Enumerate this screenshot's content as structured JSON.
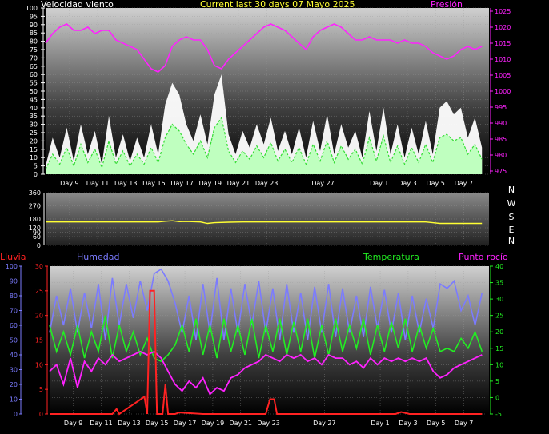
{
  "header": {
    "title": "Current last 30 days 07 Mayo 2025",
    "wind_label": "Velocidad viento",
    "pressure_label": "Presión",
    "rain_label": "Lluvia",
    "humidity_label": "Humedad",
    "temperature_label": "Temperatura",
    "dewpoint_label": "Punto rocío"
  },
  "colors": {
    "wind": "#ffffff",
    "wind_gust_fill": "#ffffff",
    "wind_avg": "#33dd33",
    "wind_fill": "#bfffbf",
    "pressure": "#ff22ff",
    "direction": "#ffff33",
    "rain": "#ff2222",
    "humidity": "#7b7bff",
    "temperature": "#22ee22",
    "dewpoint": "#ff22ff"
  },
  "chart_data": [
    {
      "type": "area",
      "title": "Current last 30 days 07 Mayo 2025",
      "x_ticks": [
        "Day 9",
        "Day 11",
        "Day 13",
        "Day 15",
        "Day 17",
        "Day 19",
        "Day 21",
        "Day 23",
        "Day 27",
        "Day 1",
        "Day 3",
        "Day 5",
        "Day 7"
      ],
      "x_tick_days": [
        1.7,
        3.7,
        5.7,
        7.7,
        9.7,
        11.7,
        13.7,
        15.7,
        19.7,
        23.7,
        25.7,
        27.7,
        29.7
      ],
      "x_range_days": [
        0,
        31.5
      ],
      "y_left_label": "Velocidad viento",
      "y_left_ticks": [
        0,
        5,
        10,
        15,
        20,
        25,
        30,
        35,
        40,
        45,
        50,
        55,
        60,
        65,
        70,
        75,
        80,
        85,
        90,
        95,
        100
      ],
      "y_left_range": [
        0,
        100
      ],
      "y_right_label": "Presión",
      "y_right_ticks": [
        975,
        980,
        985,
        990,
        995,
        1000,
        1005,
        1010,
        1015,
        1020,
        1025
      ],
      "y_right_range": [
        974,
        1026
      ],
      "series": [
        {
          "name": "Presión",
          "axis": "right",
          "x": [
            0,
            0.5,
            1,
            1.5,
            2,
            2.5,
            3,
            3.5,
            4,
            4.5,
            5,
            5.5,
            6,
            6.5,
            7,
            7.5,
            8,
            8.5,
            9,
            9.5,
            10,
            10.5,
            11,
            11.5,
            12,
            12.5,
            13,
            13.5,
            14,
            14.5,
            15,
            15.5,
            16,
            16.5,
            17,
            17.5,
            18,
            18.5,
            19,
            19.5,
            20,
            20.5,
            21,
            21.5,
            22,
            22.5,
            23,
            23.5,
            24,
            24.5,
            25,
            25.5,
            26,
            26.5,
            27,
            27.5,
            28,
            28.5,
            29,
            29.5,
            30,
            30.5,
            31
          ],
          "values": [
            1015,
            1018,
            1020,
            1021,
            1019,
            1019,
            1020,
            1018,
            1019,
            1019,
            1016,
            1015,
            1014,
            1013,
            1010,
            1007,
            1006,
            1008,
            1014,
            1016,
            1017,
            1016,
            1016,
            1013,
            1008,
            1007,
            1010,
            1012,
            1014,
            1016,
            1018,
            1020,
            1021,
            1020,
            1019,
            1017,
            1015,
            1013,
            1017,
            1019,
            1020,
            1021,
            1020,
            1018,
            1016,
            1016,
            1017,
            1016,
            1016,
            1016,
            1015,
            1016,
            1015,
            1015,
            1014,
            1012,
            1011,
            1010,
            1011,
            1013,
            1014,
            1013,
            1014
          ]
        },
        {
          "name": "Velocidad viento (ráfaga)",
          "axis": "left",
          "x": [
            0,
            0.5,
            1,
            1.5,
            2,
            2.5,
            3,
            3.5,
            4,
            4.5,
            5,
            5.5,
            6,
            6.5,
            7,
            7.5,
            8,
            8.5,
            9,
            9.5,
            10,
            10.5,
            11,
            11.5,
            12,
            12.5,
            13,
            13.5,
            14,
            14.5,
            15,
            15.5,
            16,
            16.5,
            17,
            17.5,
            18,
            18.5,
            19,
            19.5,
            20,
            20.5,
            21,
            21.5,
            22,
            22.5,
            23,
            23.5,
            24,
            24.5,
            25,
            25.5,
            26,
            26.5,
            27,
            27.5,
            28,
            28.5,
            29,
            29.5,
            30,
            30.5,
            31
          ],
          "values": [
            5,
            22,
            10,
            28,
            8,
            30,
            12,
            26,
            6,
            35,
            10,
            24,
            8,
            22,
            10,
            30,
            12,
            42,
            55,
            48,
            30,
            20,
            36,
            18,
            48,
            60,
            24,
            12,
            26,
            16,
            30,
            18,
            34,
            14,
            26,
            12,
            28,
            10,
            32,
            14,
            36,
            12,
            30,
            16,
            26,
            10,
            38,
            14,
            40,
            12,
            30,
            10,
            28,
            12,
            32,
            12,
            40,
            44,
            36,
            40,
            22,
            34,
            16
          ]
        },
        {
          "name": "Velocidad viento (media)",
          "axis": "left",
          "x": [
            0,
            0.5,
            1,
            1.5,
            2,
            2.5,
            3,
            3.5,
            4,
            4.5,
            5,
            5.5,
            6,
            6.5,
            7,
            7.5,
            8,
            8.5,
            9,
            9.5,
            10,
            10.5,
            11,
            11.5,
            12,
            12.5,
            13,
            13.5,
            14,
            14.5,
            15,
            15.5,
            16,
            16.5,
            17,
            17.5,
            18,
            18.5,
            19,
            19.5,
            20,
            20.5,
            21,
            21.5,
            22,
            22.5,
            23,
            23.5,
            24,
            24.5,
            25,
            25.5,
            26,
            26.5,
            27,
            27.5,
            28,
            28.5,
            29,
            29.5,
            30,
            30.5,
            31
          ],
          "values": [
            3,
            12,
            6,
            16,
            5,
            18,
            7,
            15,
            4,
            20,
            6,
            14,
            5,
            12,
            6,
            16,
            7,
            22,
            30,
            26,
            18,
            12,
            20,
            10,
            28,
            34,
            14,
            7,
            14,
            9,
            17,
            10,
            19,
            8,
            15,
            7,
            16,
            6,
            18,
            8,
            20,
            7,
            17,
            9,
            15,
            6,
            22,
            8,
            23,
            7,
            17,
            6,
            16,
            7,
            18,
            7,
            22,
            24,
            20,
            22,
            12,
            18,
            9
          ]
        }
      ]
    },
    {
      "type": "line",
      "y_left_ticks": [
        0,
        60,
        90,
        120,
        180,
        270,
        360
      ],
      "y_range": [
        0,
        360
      ],
      "y_right_labels": [
        "N",
        "W",
        "S",
        "E",
        "N"
      ],
      "x_range_days": [
        0,
        31.5
      ],
      "series": [
        {
          "name": "Dirección viento",
          "x": [
            0,
            2,
            4,
            6,
            8,
            8.5,
            9,
            9.5,
            10,
            11,
            11.5,
            12,
            13,
            14,
            16,
            18,
            20,
            22,
            24,
            26,
            27,
            27.5,
            28,
            30,
            31
          ],
          "values": [
            160,
            160,
            160,
            160,
            160,
            165,
            168,
            162,
            163,
            160,
            150,
            155,
            158,
            160,
            160,
            160,
            160,
            160,
            160,
            160,
            160,
            155,
            150,
            150,
            150
          ]
        }
      ]
    },
    {
      "type": "line",
      "x_ticks": [
        "Day 9",
        "Day 11",
        "Day 13",
        "Day 15",
        "Day 17",
        "Day 19",
        "Day 21",
        "Day 23",
        "Day 27",
        "Day 1",
        "Day 3",
        "Day 5",
        "Day 7"
      ],
      "x_tick_days": [
        1.7,
        3.7,
        5.7,
        7.7,
        9.7,
        11.7,
        13.7,
        15.7,
        19.7,
        23.7,
        25.7,
        27.7,
        29.7
      ],
      "x_range_days": [
        0,
        31.5
      ],
      "y_humidity_ticks": [
        0,
        10,
        20,
        30,
        40,
        50,
        60,
        70,
        80,
        90,
        100
      ],
      "y_humidity_range": [
        0,
        100
      ],
      "y_rain_ticks": [
        0,
        5,
        10,
        15,
        20,
        25,
        30
      ],
      "y_rain_range": [
        0,
        30
      ],
      "y_temp_ticks": [
        -5,
        0,
        5,
        10,
        15,
        20,
        25,
        30,
        35,
        40
      ],
      "y_temp_range": [
        -5,
        40
      ],
      "series": [
        {
          "name": "Humedad",
          "axis": "humidity",
          "x": [
            0,
            0.5,
            1,
            1.5,
            2,
            2.5,
            3,
            3.5,
            4,
            4.5,
            5,
            5.5,
            6,
            6.5,
            7,
            7.5,
            8,
            8.5,
            9,
            9.5,
            10,
            10.5,
            11,
            11.5,
            12,
            12.5,
            13,
            13.5,
            14,
            14.5,
            15,
            15.5,
            16,
            16.5,
            17,
            17.5,
            18,
            18.5,
            19,
            19.5,
            20,
            20.5,
            21,
            21.5,
            22,
            22.5,
            23,
            23.5,
            24,
            24.5,
            25,
            25.5,
            26,
            26.5,
            27,
            27.5,
            28,
            28.5,
            29,
            29.5,
            30,
            30.5,
            31
          ],
          "values": [
            55,
            80,
            60,
            85,
            55,
            82,
            58,
            88,
            50,
            92,
            60,
            88,
            65,
            90,
            70,
            95,
            98,
            90,
            75,
            55,
            80,
            50,
            88,
            55,
            92,
            50,
            85,
            55,
            88,
            60,
            90,
            55,
            85,
            50,
            88,
            55,
            82,
            50,
            86,
            55,
            88,
            52,
            85,
            55,
            80,
            52,
            86,
            58,
            84,
            55,
            82,
            50,
            80,
            55,
            78,
            58,
            88,
            85,
            90,
            70,
            80,
            60,
            82
          ]
        },
        {
          "name": "Temperatura",
          "axis": "temp",
          "x": [
            0,
            0.5,
            1,
            1.5,
            2,
            2.5,
            3,
            3.5,
            4,
            4.5,
            5,
            5.5,
            6,
            6.5,
            7,
            7.5,
            8,
            8.5,
            9,
            9.5,
            10,
            10.5,
            11,
            11.5,
            12,
            12.5,
            13,
            13.5,
            14,
            14.5,
            15,
            15.5,
            16,
            16.5,
            17,
            17.5,
            18,
            18.5,
            19,
            19.5,
            20,
            20.5,
            21,
            21.5,
            22,
            22.5,
            23,
            23.5,
            24,
            24.5,
            25,
            25.5,
            26,
            26.5,
            27,
            27.5,
            28,
            28.5,
            29,
            29.5,
            30,
            30.5,
            31
          ],
          "values": [
            22,
            14,
            20,
            13,
            22,
            12,
            20,
            14,
            25,
            12,
            22,
            14,
            20,
            13,
            18,
            12,
            11,
            13,
            16,
            22,
            14,
            24,
            13,
            22,
            12,
            24,
            14,
            22,
            13,
            24,
            12,
            22,
            14,
            24,
            13,
            23,
            14,
            24,
            12,
            22,
            13,
            24,
            14,
            22,
            15,
            24,
            13,
            22,
            14,
            23,
            15,
            24,
            14,
            22,
            15,
            21,
            14,
            15,
            14,
            18,
            15,
            20,
            14
          ]
        },
        {
          "name": "Punto rocío",
          "axis": "temp",
          "x": [
            0,
            0.5,
            1,
            1.5,
            2,
            2.5,
            3,
            3.5,
            4,
            4.5,
            5,
            5.5,
            6,
            6.5,
            7,
            7.5,
            8,
            8.5,
            9,
            9.5,
            10,
            10.5,
            11,
            11.5,
            12,
            12.5,
            13,
            13.5,
            14,
            14.5,
            15,
            15.5,
            16,
            16.5,
            17,
            17.5,
            18,
            18.5,
            19,
            19.5,
            20,
            20.5,
            21,
            21.5,
            22,
            22.5,
            23,
            23.5,
            24,
            24.5,
            25,
            25.5,
            26,
            26.5,
            27,
            27.5,
            28,
            28.5,
            29,
            29.5,
            30,
            30.5,
            31
          ],
          "values": [
            8,
            10,
            4,
            12,
            3,
            11,
            8,
            12,
            10,
            13,
            11,
            12,
            13,
            14,
            13,
            14,
            12,
            8,
            4,
            2,
            5,
            3,
            6,
            1,
            3,
            2,
            6,
            7,
            9,
            10,
            11,
            13,
            12,
            11,
            13,
            12,
            13,
            11,
            12,
            10,
            13,
            12,
            12,
            10,
            11,
            9,
            12,
            10,
            12,
            11,
            12,
            11,
            12,
            11,
            12,
            8,
            6,
            7,
            9,
            10,
            11,
            12,
            13
          ]
        },
        {
          "name": "Lluvia",
          "axis": "rain",
          "x": [
            0,
            4.5,
            4.8,
            5.0,
            6.8,
            7.0,
            7.2,
            7.5,
            7.7,
            8.1,
            8.3,
            8.5,
            9.0,
            9.3,
            11.0,
            15.5,
            15.8,
            16.1,
            16.3,
            24.8,
            25.2,
            25.8,
            31
          ],
          "values": [
            0,
            0,
            1,
            0,
            3.5,
            0,
            25,
            25,
            0,
            0,
            6,
            0,
            0,
            0.3,
            0,
            0,
            3,
            3,
            0,
            0,
            0.4,
            0,
            0
          ]
        }
      ]
    }
  ]
}
